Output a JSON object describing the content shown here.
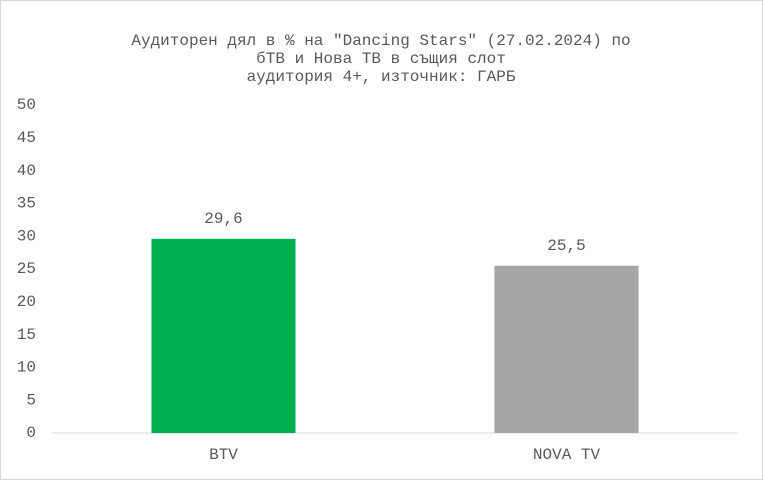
{
  "chart_data": {
    "type": "bar",
    "title": [
      "Аудиторен дял в %  на \"Dancing Stars\" (27.02.2024) по",
      "бТВ и Нова ТВ в същия слот",
      "аудитория 4+, източник: ГАРБ"
    ],
    "categories": [
      "BTV",
      "NOVA TV"
    ],
    "values": [
      29.6,
      25.5
    ],
    "value_labels": [
      "29,6",
      "25,5"
    ],
    "colors": [
      "#00b050",
      "#a6a6a6"
    ],
    "ylim": [
      0,
      50
    ],
    "yticks": [
      0,
      5,
      10,
      15,
      20,
      25,
      30,
      35,
      40,
      45,
      50
    ],
    "grid": false
  }
}
